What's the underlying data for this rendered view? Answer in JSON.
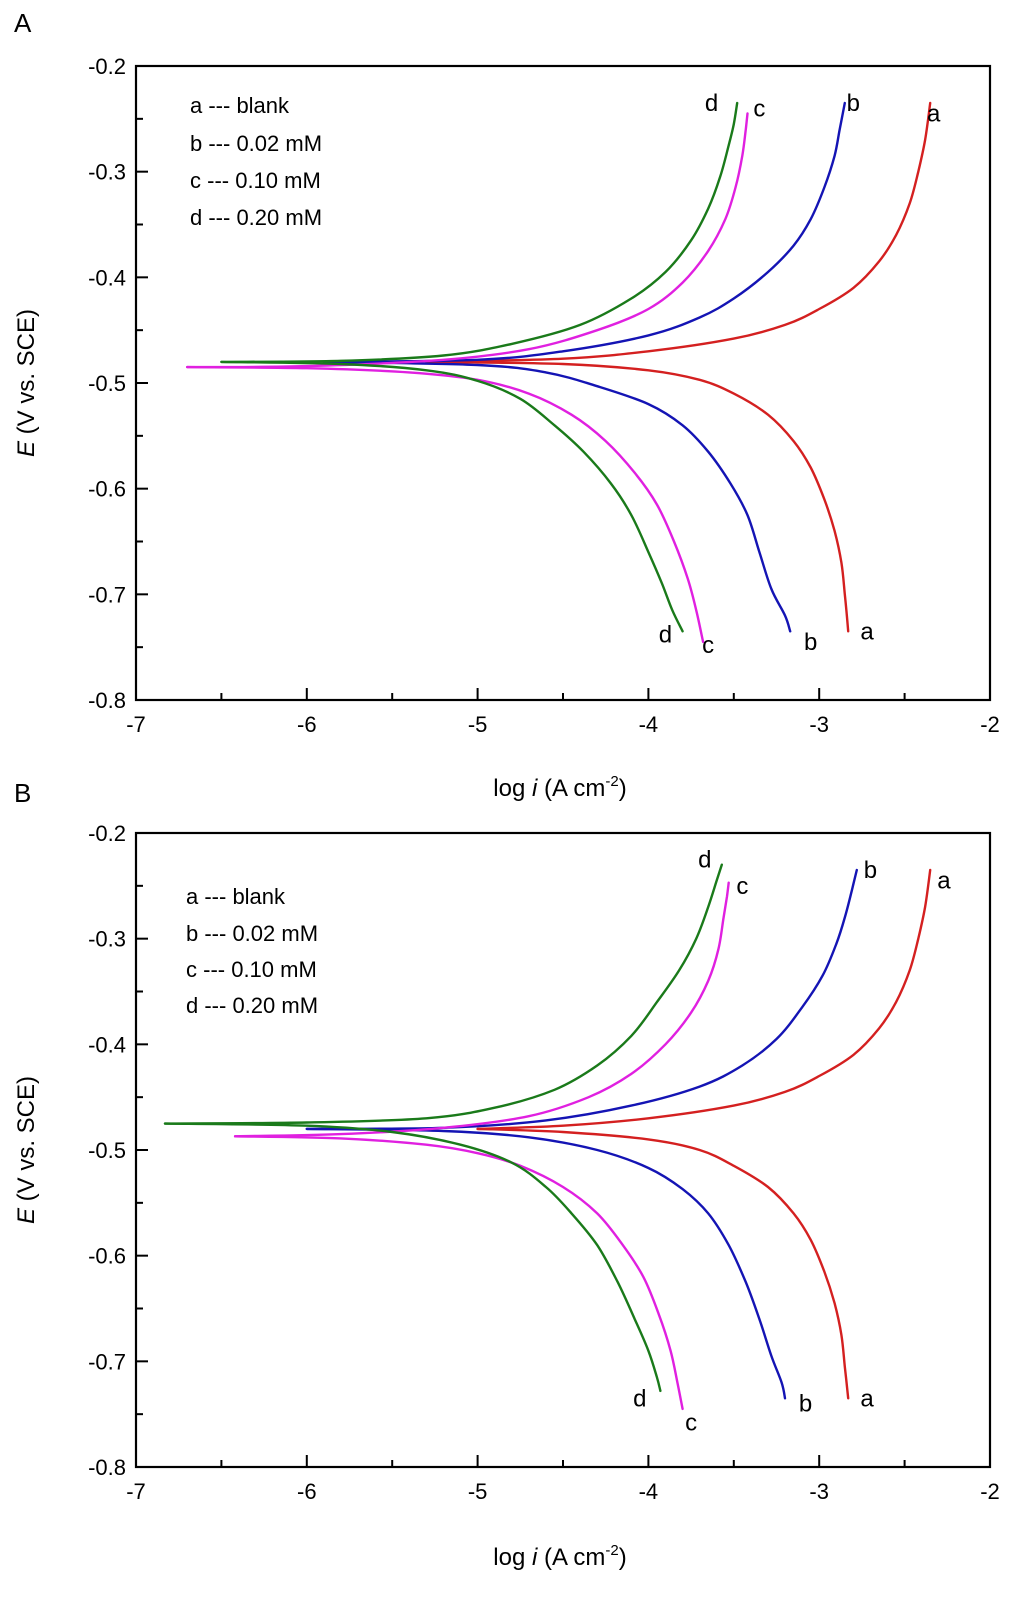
{
  "chart_data": [
    {
      "panel": "A",
      "type": "line",
      "title": "",
      "xlabel_parts": {
        "prefix": "log ",
        "italic": "i",
        "suffix": " (A cm",
        "sup": "-2",
        "close": ")"
      },
      "ylabel_parts": {
        "italic": "E",
        "suffix": " (V vs. SCE)"
      },
      "xlim": [
        -7,
        -2
      ],
      "ylim": [
        -0.8,
        -0.2
      ],
      "x_ticks": [
        "-7",
        "-6",
        "-5",
        "-4",
        "-3",
        "-2"
      ],
      "y_ticks": [
        "-0.2",
        "-0.3",
        "-0.4",
        "-0.5",
        "-0.6",
        "-0.7",
        "-0.8"
      ],
      "legend": [
        "a --- blank",
        "b --- 0.02 mM",
        "c --- 0.10 mM",
        "d --- 0.20 mM"
      ],
      "legend_position": "top-left",
      "grid": false,
      "series": [
        {
          "name": "a",
          "label": "blank",
          "color": "#d42020",
          "anodic": [
            [
              -5.3,
              -0.48
            ],
            [
              -4.5,
              -0.477
            ],
            [
              -4.0,
              -0.47
            ],
            [
              -3.5,
              -0.458
            ],
            [
              -3.2,
              -0.445
            ],
            [
              -3.0,
              -0.43
            ],
            [
              -2.8,
              -0.41
            ],
            [
              -2.65,
              -0.385
            ],
            [
              -2.55,
              -0.36
            ],
            [
              -2.47,
              -0.33
            ],
            [
              -2.42,
              -0.3
            ],
            [
              -2.38,
              -0.27
            ],
            [
              -2.35,
              -0.235
            ]
          ],
          "cathodic": [
            [
              -5.3,
              -0.48
            ],
            [
              -4.5,
              -0.482
            ],
            [
              -4.0,
              -0.488
            ],
            [
              -3.7,
              -0.497
            ],
            [
              -3.5,
              -0.51
            ],
            [
              -3.3,
              -0.53
            ],
            [
              -3.15,
              -0.555
            ],
            [
              -3.05,
              -0.58
            ],
            [
              -2.97,
              -0.61
            ],
            [
              -2.91,
              -0.64
            ],
            [
              -2.87,
              -0.67
            ],
            [
              -2.85,
              -0.7
            ],
            [
              -2.83,
              -0.735
            ]
          ]
        },
        {
          "name": "b",
          "label": "0.02 mM",
          "color": "#1414b4",
          "anodic": [
            [
              -5.9,
              -0.48
            ],
            [
              -5.0,
              -0.478
            ],
            [
              -4.5,
              -0.47
            ],
            [
              -4.0,
              -0.455
            ],
            [
              -3.7,
              -0.438
            ],
            [
              -3.5,
              -0.42
            ],
            [
              -3.3,
              -0.395
            ],
            [
              -3.15,
              -0.37
            ],
            [
              -3.05,
              -0.345
            ],
            [
              -2.97,
              -0.315
            ],
            [
              -2.91,
              -0.285
            ],
            [
              -2.88,
              -0.26
            ],
            [
              -2.85,
              -0.235
            ]
          ],
          "cathodic": [
            [
              -5.9,
              -0.48
            ],
            [
              -5.0,
              -0.483
            ],
            [
              -4.6,
              -0.49
            ],
            [
              -4.3,
              -0.503
            ],
            [
              -4.0,
              -0.52
            ],
            [
              -3.8,
              -0.54
            ],
            [
              -3.65,
              -0.565
            ],
            [
              -3.52,
              -0.595
            ],
            [
              -3.42,
              -0.625
            ],
            [
              -3.35,
              -0.66
            ],
            [
              -3.28,
              -0.695
            ],
            [
              -3.2,
              -0.72
            ],
            [
              -3.17,
              -0.735
            ]
          ]
        },
        {
          "name": "c",
          "label": "0.10 mM",
          "color": "#e020e0",
          "anodic": [
            [
              -6.7,
              -0.485
            ],
            [
              -6.0,
              -0.484
            ],
            [
              -5.2,
              -0.478
            ],
            [
              -4.7,
              -0.468
            ],
            [
              -4.3,
              -0.45
            ],
            [
              -4.0,
              -0.43
            ],
            [
              -3.8,
              -0.405
            ],
            [
              -3.65,
              -0.375
            ],
            [
              -3.55,
              -0.345
            ],
            [
              -3.49,
              -0.315
            ],
            [
              -3.45,
              -0.285
            ],
            [
              -3.43,
              -0.26
            ],
            [
              -3.42,
              -0.245
            ]
          ],
          "cathodic": [
            [
              -6.7,
              -0.485
            ],
            [
              -6.0,
              -0.486
            ],
            [
              -5.4,
              -0.49
            ],
            [
              -5.0,
              -0.497
            ],
            [
              -4.7,
              -0.51
            ],
            [
              -4.45,
              -0.53
            ],
            [
              -4.25,
              -0.555
            ],
            [
              -4.08,
              -0.585
            ],
            [
              -3.95,
              -0.615
            ],
            [
              -3.85,
              -0.65
            ],
            [
              -3.77,
              -0.685
            ],
            [
              -3.72,
              -0.715
            ],
            [
              -3.68,
              -0.745
            ]
          ]
        },
        {
          "name": "d",
          "label": "0.20 mM",
          "color": "#1a7a1a",
          "anodic": [
            [
              -6.5,
              -0.48
            ],
            [
              -5.8,
              -0.479
            ],
            [
              -5.2,
              -0.474
            ],
            [
              -4.8,
              -0.463
            ],
            [
              -4.4,
              -0.445
            ],
            [
              -4.1,
              -0.42
            ],
            [
              -3.9,
              -0.395
            ],
            [
              -3.75,
              -0.365
            ],
            [
              -3.65,
              -0.335
            ],
            [
              -3.58,
              -0.305
            ],
            [
              -3.53,
              -0.275
            ],
            [
              -3.5,
              -0.255
            ],
            [
              -3.48,
              -0.235
            ]
          ],
          "cathodic": [
            [
              -6.5,
              -0.48
            ],
            [
              -5.8,
              -0.482
            ],
            [
              -5.3,
              -0.488
            ],
            [
              -5.0,
              -0.498
            ],
            [
              -4.75,
              -0.515
            ],
            [
              -4.55,
              -0.54
            ],
            [
              -4.38,
              -0.565
            ],
            [
              -4.22,
              -0.595
            ],
            [
              -4.1,
              -0.625
            ],
            [
              -4.0,
              -0.66
            ],
            [
              -3.92,
              -0.69
            ],
            [
              -3.86,
              -0.715
            ],
            [
              -3.8,
              -0.735
            ]
          ]
        }
      ],
      "curve_labels": {
        "top": [
          {
            "text": "a",
            "x": -2.33,
            "y": -0.245
          },
          {
            "text": "b",
            "x": -2.8,
            "y": -0.235
          },
          {
            "text": "c",
            "x": -3.35,
            "y": -0.24
          },
          {
            "text": "d",
            "x": -3.63,
            "y": -0.235
          }
        ],
        "bottom": [
          {
            "text": "a",
            "x": -2.72,
            "y": -0.735
          },
          {
            "text": "b",
            "x": -3.05,
            "y": -0.745
          },
          {
            "text": "c",
            "x": -3.65,
            "y": -0.748
          },
          {
            "text": "d",
            "x": -3.9,
            "y": -0.738
          }
        ]
      }
    },
    {
      "panel": "B",
      "type": "line",
      "title": "",
      "xlabel_parts": {
        "prefix": "log ",
        "italic": "i",
        "suffix": " (A cm",
        "sup": "-2",
        "close": ")"
      },
      "ylabel_parts": {
        "italic": "E",
        "suffix": " (V vs. SCE)"
      },
      "xlim": [
        -7,
        -2
      ],
      "ylim": [
        -0.8,
        -0.2
      ],
      "x_ticks": [
        "-7",
        "-6",
        "-5",
        "-4",
        "-3",
        "-2"
      ],
      "y_ticks": [
        "-0.2",
        "-0.3",
        "-0.4",
        "-0.5",
        "-0.6",
        "-0.7",
        "-0.8"
      ],
      "legend": [
        "a --- blank",
        "b --- 0.02 mM",
        "c --- 0.10 mM",
        "d --- 0.20 mM"
      ],
      "legend_position": "top-left",
      "grid": false,
      "series": [
        {
          "name": "a",
          "label": "blank",
          "color": "#d42020",
          "anodic": [
            [
              -5.0,
              -0.48
            ],
            [
              -4.5,
              -0.477
            ],
            [
              -4.0,
              -0.47
            ],
            [
              -3.5,
              -0.458
            ],
            [
              -3.2,
              -0.445
            ],
            [
              -3.0,
              -0.43
            ],
            [
              -2.8,
              -0.41
            ],
            [
              -2.65,
              -0.385
            ],
            [
              -2.55,
              -0.36
            ],
            [
              -2.47,
              -0.33
            ],
            [
              -2.42,
              -0.3
            ],
            [
              -2.38,
              -0.27
            ],
            [
              -2.35,
              -0.235
            ]
          ],
          "cathodic": [
            [
              -5.0,
              -0.48
            ],
            [
              -4.5,
              -0.483
            ],
            [
              -4.0,
              -0.49
            ],
            [
              -3.7,
              -0.5
            ],
            [
              -3.5,
              -0.515
            ],
            [
              -3.3,
              -0.535
            ],
            [
              -3.15,
              -0.56
            ],
            [
              -3.05,
              -0.585
            ],
            [
              -2.97,
              -0.615
            ],
            [
              -2.91,
              -0.645
            ],
            [
              -2.87,
              -0.675
            ],
            [
              -2.85,
              -0.705
            ],
            [
              -2.83,
              -0.735
            ]
          ]
        },
        {
          "name": "b",
          "label": "0.02 mM",
          "color": "#1414b4",
          "anodic": [
            [
              -6.0,
              -0.48
            ],
            [
              -5.2,
              -0.479
            ],
            [
              -4.6,
              -0.472
            ],
            [
              -4.1,
              -0.458
            ],
            [
              -3.7,
              -0.44
            ],
            [
              -3.45,
              -0.42
            ],
            [
              -3.25,
              -0.395
            ],
            [
              -3.1,
              -0.365
            ],
            [
              -2.98,
              -0.335
            ],
            [
              -2.9,
              -0.305
            ],
            [
              -2.85,
              -0.28
            ],
            [
              -2.81,
              -0.255
            ],
            [
              -2.78,
              -0.235
            ]
          ],
          "cathodic": [
            [
              -6.0,
              -0.48
            ],
            [
              -5.2,
              -0.482
            ],
            [
              -4.7,
              -0.488
            ],
            [
              -4.3,
              -0.5
            ],
            [
              -4.0,
              -0.517
            ],
            [
              -3.8,
              -0.537
            ],
            [
              -3.65,
              -0.56
            ],
            [
              -3.53,
              -0.59
            ],
            [
              -3.43,
              -0.625
            ],
            [
              -3.35,
              -0.66
            ],
            [
              -3.28,
              -0.695
            ],
            [
              -3.22,
              -0.72
            ],
            [
              -3.2,
              -0.735
            ]
          ]
        },
        {
          "name": "c",
          "label": "0.10 mM",
          "color": "#e020e0",
          "anodic": [
            [
              -6.42,
              -0.487
            ],
            [
              -5.8,
              -0.485
            ],
            [
              -5.2,
              -0.479
            ],
            [
              -4.7,
              -0.468
            ],
            [
              -4.35,
              -0.45
            ],
            [
              -4.1,
              -0.428
            ],
            [
              -3.9,
              -0.4
            ],
            [
              -3.75,
              -0.37
            ],
            [
              -3.65,
              -0.34
            ],
            [
              -3.59,
              -0.31
            ],
            [
              -3.56,
              -0.28
            ],
            [
              -3.54,
              -0.26
            ],
            [
              -3.53,
              -0.247
            ]
          ],
          "cathodic": [
            [
              -6.42,
              -0.487
            ],
            [
              -5.8,
              -0.489
            ],
            [
              -5.3,
              -0.495
            ],
            [
              -5.0,
              -0.503
            ],
            [
              -4.75,
              -0.515
            ],
            [
              -4.5,
              -0.535
            ],
            [
              -4.3,
              -0.56
            ],
            [
              -4.15,
              -0.59
            ],
            [
              -4.03,
              -0.62
            ],
            [
              -3.94,
              -0.655
            ],
            [
              -3.87,
              -0.69
            ],
            [
              -3.83,
              -0.72
            ],
            [
              -3.8,
              -0.745
            ]
          ]
        },
        {
          "name": "d",
          "label": "0.20 mM",
          "color": "#1a7a1a",
          "anodic": [
            [
              -6.83,
              -0.475
            ],
            [
              -6.0,
              -0.474
            ],
            [
              -5.3,
              -0.47
            ],
            [
              -4.9,
              -0.46
            ],
            [
              -4.55,
              -0.443
            ],
            [
              -4.3,
              -0.42
            ],
            [
              -4.1,
              -0.392
            ],
            [
              -3.95,
              -0.36
            ],
            [
              -3.82,
              -0.33
            ],
            [
              -3.72,
              -0.3
            ],
            [
              -3.65,
              -0.27
            ],
            [
              -3.6,
              -0.245
            ],
            [
              -3.57,
              -0.23
            ]
          ],
          "cathodic": [
            [
              -6.83,
              -0.475
            ],
            [
              -6.0,
              -0.477
            ],
            [
              -5.5,
              -0.483
            ],
            [
              -5.1,
              -0.495
            ],
            [
              -4.8,
              -0.512
            ],
            [
              -4.6,
              -0.535
            ],
            [
              -4.45,
              -0.56
            ],
            [
              -4.3,
              -0.59
            ],
            [
              -4.18,
              -0.625
            ],
            [
              -4.08,
              -0.66
            ],
            [
              -4.0,
              -0.69
            ],
            [
              -3.95,
              -0.715
            ],
            [
              -3.93,
              -0.728
            ]
          ]
        }
      ],
      "curve_labels": {
        "top": [
          {
            "text": "a",
            "x": -2.27,
            "y": -0.245
          },
          {
            "text": "b",
            "x": -2.7,
            "y": -0.235
          },
          {
            "text": "c",
            "x": -3.45,
            "y": -0.25
          },
          {
            "text": "d",
            "x": -3.67,
            "y": -0.225
          }
        ],
        "bottom": [
          {
            "text": "a",
            "x": -2.72,
            "y": -0.735
          },
          {
            "text": "b",
            "x": -3.08,
            "y": -0.74
          },
          {
            "text": "c",
            "x": -3.75,
            "y": -0.758
          },
          {
            "text": "d",
            "x": -4.05,
            "y": -0.735
          }
        ]
      }
    }
  ]
}
